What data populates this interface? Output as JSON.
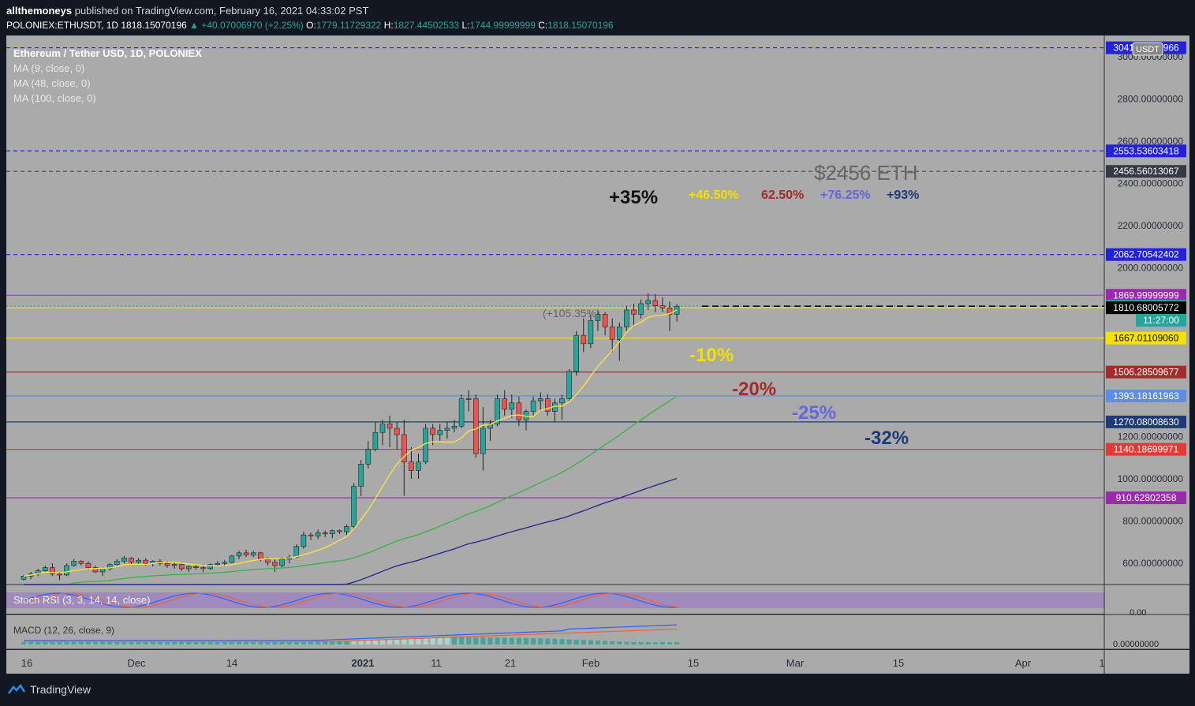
{
  "header": {
    "user": "allthemoneys",
    "published": "published on TradingView.com, February 16, 2021 04:33:02 PST",
    "symbol": "POLONIEX:ETHUSDT, 1D",
    "last": "1818.15070196",
    "change": "▲ +40.07006970 (+2.25%)",
    "o_label": "O:",
    "o": "1779.11729322",
    "h_label": "H:",
    "h": "1827.44502533",
    "l_label": "L:",
    "l": "1744.99999999",
    "c_label": "C:",
    "c": "1818.15070196"
  },
  "legend": {
    "title": "Ethereum / Tether USD, 1D, POLONIEX",
    "ma9": "MA (9, close, 0)",
    "ma48": "MA (48, close, 0)",
    "ma100": "MA (100, close, 0)",
    "stoch": "Stoch RSI (3, 3, 14, 14, close)",
    "macd": "MACD (12, 26, close, 9)"
  },
  "currency_badge": "USDT",
  "footer": {
    "brand": "TradingView"
  },
  "colors": {
    "background": "#aaaaaa",
    "outer": "#131722",
    "up": "#26a69a",
    "down": "#ef5350",
    "ma9": "#f7e04a",
    "ma48": "#3db44a",
    "ma100": "#2a2a8c",
    "blue_dash": "#2222dd"
  },
  "chart_data": {
    "type": "candlestick",
    "title": "Ethereum / Tether USD, 1D, POLONIEX",
    "y_axis": {
      "ylim": [
        500,
        3100
      ],
      "ticks": [
        "600.00000000",
        "800.00000000",
        "1000.00000000",
        "1200.00000000",
        "2000.00000000",
        "2200.00000000",
        "2400.00000000",
        "2600.00000000",
        "2800.00000000",
        "3000.00000000"
      ]
    },
    "x_axis": {
      "ticks": [
        "16",
        "Dec",
        "14",
        "2021",
        "11",
        "21",
        "Feb",
        "15",
        "Mar",
        "15",
        "Apr",
        "1"
      ]
    },
    "candles_note": "daily OHLC from mid-Nov 2020 to Feb 16 2021",
    "candles": [
      [
        525,
        545,
        520,
        540
      ],
      [
        540,
        560,
        525,
        550
      ],
      [
        550,
        575,
        540,
        565
      ],
      [
        565,
        590,
        560,
        580
      ],
      [
        580,
        600,
        540,
        550
      ],
      [
        550,
        560,
        520,
        545
      ],
      [
        545,
        600,
        540,
        590
      ],
      [
        590,
        620,
        585,
        610
      ],
      [
        610,
        615,
        590,
        600
      ],
      [
        600,
        610,
        570,
        580
      ],
      [
        580,
        590,
        555,
        560
      ],
      [
        560,
        580,
        540,
        575
      ],
      [
        575,
        600,
        565,
        595
      ],
      [
        595,
        620,
        590,
        610
      ],
      [
        610,
        635,
        600,
        625
      ],
      [
        625,
        630,
        595,
        605
      ],
      [
        605,
        625,
        598,
        615
      ],
      [
        615,
        625,
        590,
        600
      ],
      [
        600,
        615,
        585,
        610
      ],
      [
        610,
        620,
        590,
        600
      ],
      [
        600,
        610,
        580,
        590
      ],
      [
        590,
        605,
        575,
        595
      ],
      [
        595,
        600,
        565,
        575
      ],
      [
        575,
        590,
        560,
        585
      ],
      [
        585,
        595,
        570,
        580
      ],
      [
        580,
        590,
        560,
        575
      ],
      [
        575,
        600,
        570,
        595
      ],
      [
        595,
        610,
        590,
        600
      ],
      [
        600,
        615,
        585,
        605
      ],
      [
        605,
        640,
        600,
        635
      ],
      [
        635,
        660,
        620,
        650
      ],
      [
        650,
        665,
        630,
        640
      ],
      [
        640,
        660,
        630,
        650
      ],
      [
        650,
        655,
        610,
        620
      ],
      [
        620,
        630,
        590,
        605
      ],
      [
        605,
        620,
        560,
        590
      ],
      [
        590,
        630,
        580,
        620
      ],
      [
        620,
        640,
        600,
        630
      ],
      [
        630,
        690,
        625,
        680
      ],
      [
        680,
        750,
        670,
        735
      ],
      [
        735,
        745,
        710,
        730
      ],
      [
        730,
        760,
        715,
        745
      ],
      [
        745,
        755,
        725,
        740
      ],
      [
        740,
        760,
        720,
        755
      ],
      [
        755,
        760,
        740,
        750
      ],
      [
        750,
        785,
        735,
        775
      ],
      [
        775,
        980,
        760,
        965
      ],
      [
        965,
        1090,
        920,
        1070
      ],
      [
        1070,
        1180,
        1050,
        1140
      ],
      [
        1140,
        1270,
        1130,
        1220
      ],
      [
        1220,
        1280,
        1160,
        1260
      ],
      [
        1260,
        1300,
        1150,
        1240
      ],
      [
        1240,
        1270,
        1140,
        1210
      ],
      [
        1210,
        1280,
        920,
        1080
      ],
      [
        1080,
        1150,
        1000,
        1040
      ],
      [
        1040,
        1120,
        1000,
        1080
      ],
      [
        1080,
        1260,
        1070,
        1240
      ],
      [
        1240,
        1260,
        1160,
        1210
      ],
      [
        1210,
        1260,
        1180,
        1230
      ],
      [
        1230,
        1270,
        1190,
        1240
      ],
      [
        1240,
        1280,
        1220,
        1250
      ],
      [
        1250,
        1400,
        1240,
        1380
      ],
      [
        1380,
        1420,
        1320,
        1380
      ],
      [
        1380,
        1400,
        1100,
        1120
      ],
      [
        1120,
        1340,
        1040,
        1240
      ],
      [
        1240,
        1280,
        1180,
        1260
      ],
      [
        1260,
        1400,
        1250,
        1380
      ],
      [
        1380,
        1420,
        1300,
        1330
      ],
      [
        1330,
        1400,
        1290,
        1360
      ],
      [
        1360,
        1390,
        1250,
        1280
      ],
      [
        1280,
        1330,
        1230,
        1320
      ],
      [
        1320,
        1390,
        1300,
        1370
      ],
      [
        1370,
        1410,
        1320,
        1380
      ],
      [
        1380,
        1400,
        1300,
        1320
      ],
      [
        1320,
        1380,
        1270,
        1360
      ],
      [
        1360,
        1400,
        1280,
        1380
      ],
      [
        1380,
        1520,
        1370,
        1510
      ],
      [
        1510,
        1700,
        1490,
        1680
      ],
      [
        1680,
        1760,
        1600,
        1640
      ],
      [
        1640,
        1780,
        1620,
        1750
      ],
      [
        1750,
        1800,
        1700,
        1780
      ],
      [
        1780,
        1790,
        1680,
        1720
      ],
      [
        1720,
        1760,
        1600,
        1660
      ],
      [
        1660,
        1740,
        1560,
        1720
      ],
      [
        1720,
        1820,
        1700,
        1800
      ],
      [
        1800,
        1830,
        1720,
        1780
      ],
      [
        1780,
        1850,
        1760,
        1830
      ],
      [
        1830,
        1880,
        1800,
        1845
      ],
      [
        1845,
        1875,
        1790,
        1820
      ],
      [
        1820,
        1860,
        1790,
        1810
      ],
      [
        1810,
        1840,
        1700,
        1780
      ],
      [
        1779.117,
        1827.445,
        1745,
        1818.151
      ]
    ],
    "levels": [
      {
        "value": "3041.83658966",
        "style": "dashed",
        "color": "#2222dd",
        "label_bg": "#2222dd"
      },
      {
        "value": "2553.53603418",
        "style": "dashed",
        "color": "#2222dd",
        "label_bg": "#2222dd"
      },
      {
        "value": "2456.56013067",
        "style": "dashed",
        "color": "#555555",
        "label_bg": "#363a45"
      },
      {
        "value": "2062.70542402",
        "style": "dashed",
        "color": "#2222dd",
        "label_bg": "#2222dd"
      },
      {
        "value": "1869.99999999",
        "style": "solid",
        "color": "#a040e0",
        "label_bg": "#9c27b0"
      },
      {
        "value": "1818.15070196",
        "style": "dotted",
        "color": "#26a69a",
        "label_bg": "#26a69a"
      },
      {
        "value": "1810.68005772",
        "style": "solid",
        "color": "#f5e000",
        "label_bg": "#000000"
      },
      {
        "value": "1667.01109060",
        "style": "solid",
        "color": "#f5e000",
        "label_bg": "#f5e000"
      },
      {
        "value": "1506.28509677",
        "style": "solid",
        "color": "#a52a2a",
        "label_bg": "#a52a2a"
      },
      {
        "value": "1393.18161963",
        "style": "solid",
        "color": "#5b8ee6",
        "label_bg": "#5b8ee6"
      },
      {
        "value": "1270.08008630",
        "style": "solid",
        "color": "#1e3a7a",
        "label_bg": "#1e3a7a"
      },
      {
        "value": "1140.18699971",
        "style": "solid",
        "color": "#e53935",
        "label_bg": "#e53935"
      },
      {
        "value": "910.62802358",
        "style": "solid",
        "color": "#9c27b0",
        "label_bg": "#9c27b0"
      }
    ],
    "countdown": "11:27:00",
    "annotations": {
      "target": "$2456  ETH",
      "p35": "+35%",
      "p46": "+46.50%",
      "p62": "62.50%",
      "p76": "+76.25%",
      "p93": "+93%",
      "gain": "(+105.35%)",
      "m10": "-10%",
      "m20": "-20%",
      "m25": "-25%",
      "m32": "-32%"
    },
    "stoch_rsi": {
      "ticks": [
        "0.00"
      ]
    },
    "macd": {
      "ticks": [
        "0.00000000"
      ]
    }
  }
}
